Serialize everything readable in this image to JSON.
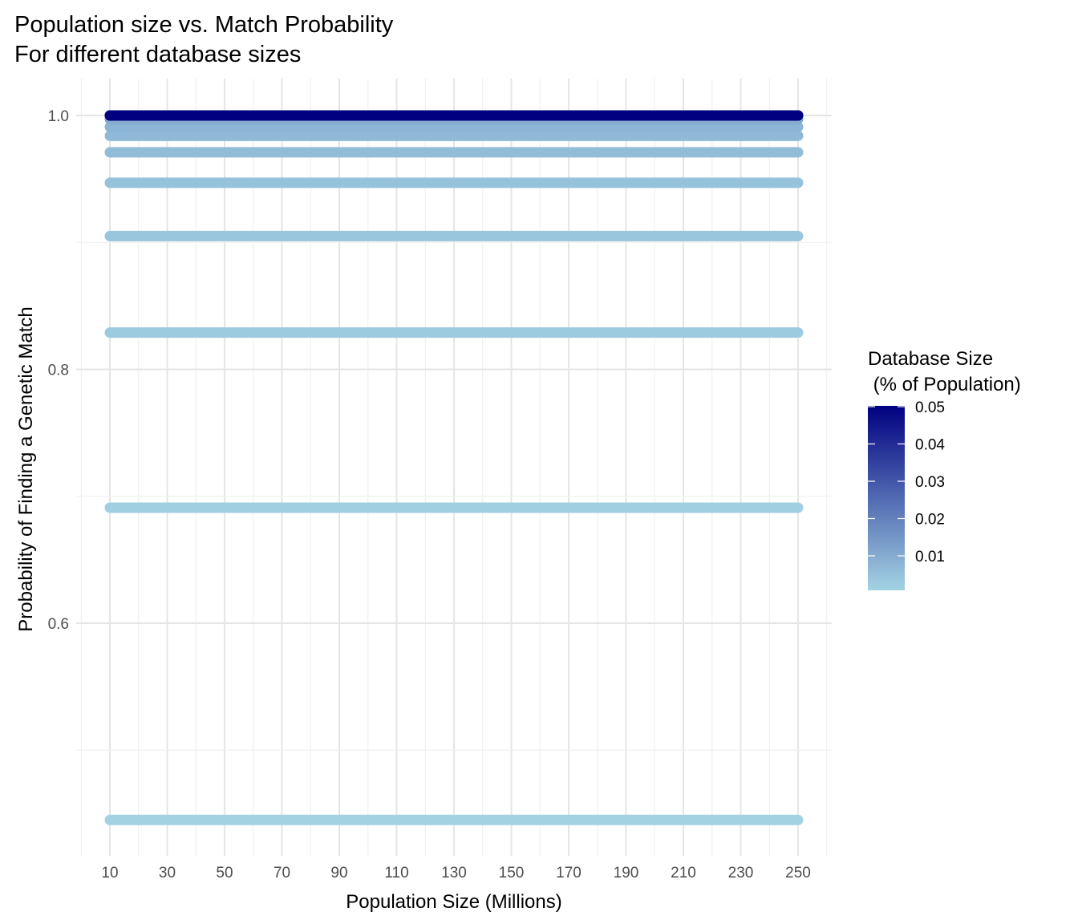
{
  "chart_data": {
    "type": "line",
    "title": "Population size vs. Match Probability",
    "subtitle": "For different database sizes",
    "xlabel": "Population Size (Millions)",
    "ylabel": "Probability of Finding a Genetic Match",
    "xlim": [
      0,
      260
    ],
    "ylim": [
      0.417,
      1.029
    ],
    "x_ticks": [
      "10",
      "30",
      "50",
      "70",
      "90",
      "110",
      "130",
      "150",
      "170",
      "190",
      "210",
      "230",
      "250"
    ],
    "y_ticks": [
      "0.6",
      "0.8",
      "1.0"
    ],
    "grid": true,
    "x_range": [
      10,
      250
    ],
    "legend": {
      "title_line1": "Database Size",
      "title_line2": " (% of Population)",
      "placement": "right",
      "type": "colorbar",
      "range": [
        0.001,
        0.05
      ],
      "ticks": [
        "0.05",
        "0.04",
        "0.03",
        "0.02",
        "0.01"
      ],
      "color_low": "#a3d3e3",
      "color_high": "#000080"
    },
    "series": [
      {
        "db_size": 0.001,
        "y": 0.445
      },
      {
        "db_size": 0.002,
        "y": 0.691
      },
      {
        "db_size": 0.003,
        "y": 0.829
      },
      {
        "db_size": 0.004,
        "y": 0.905
      },
      {
        "db_size": 0.005,
        "y": 0.947
      },
      {
        "db_size": 0.006,
        "y": 0.971
      },
      {
        "db_size": 0.007,
        "y": 0.984
      },
      {
        "db_size": 0.008,
        "y": 0.991
      },
      {
        "db_size": 0.01,
        "y": 0.997
      },
      {
        "db_size": 0.02,
        "y": 1.0
      },
      {
        "db_size": 0.03,
        "y": 1.0
      },
      {
        "db_size": 0.04,
        "y": 1.0
      },
      {
        "db_size": 0.05,
        "y": 1.0
      }
    ]
  }
}
